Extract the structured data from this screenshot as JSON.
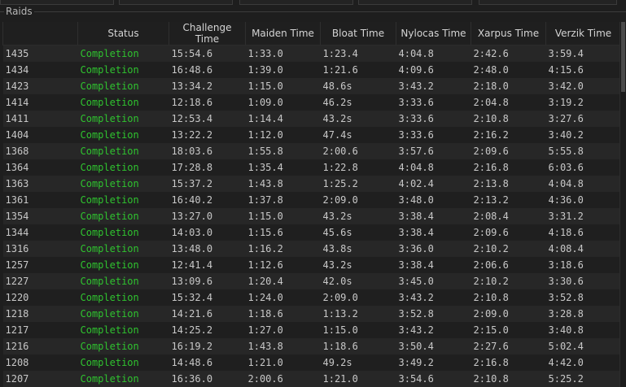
{
  "panel": {
    "title": "Raids"
  },
  "columns": [
    "",
    "Status",
    "Challenge Time",
    "Maiden Time",
    "Bloat Time",
    "Nylocas Time",
    "Xarpus Time",
    "Verzik Time"
  ],
  "rows": [
    [
      "1435",
      "Completion",
      "15:54.6",
      "1:33.0",
      "1:23.4",
      "4:04.8",
      "2:42.6",
      "3:59.4"
    ],
    [
      "1434",
      "Completion",
      "16:48.6",
      "1:39.0",
      "1:21.6",
      "4:09.6",
      "2:48.0",
      "4:15.6"
    ],
    [
      "1423",
      "Completion",
      "13:34.2",
      "1:15.0",
      "48.6s",
      "3:43.2",
      "2:18.0",
      "3:42.0"
    ],
    [
      "1414",
      "Completion",
      "12:18.6",
      "1:09.0",
      "46.2s",
      "3:33.6",
      "2:04.8",
      "3:19.2"
    ],
    [
      "1411",
      "Completion",
      "12:53.4",
      "1:14.4",
      "43.2s",
      "3:33.6",
      "2:10.8",
      "3:27.6"
    ],
    [
      "1404",
      "Completion",
      "13:22.2",
      "1:12.0",
      "47.4s",
      "3:33.6",
      "2:16.2",
      "3:40.2"
    ],
    [
      "1368",
      "Completion",
      "18:03.6",
      "1:55.8",
      "2:00.6",
      "3:57.6",
      "2:09.6",
      "5:55.8"
    ],
    [
      "1364",
      "Completion",
      "17:28.8",
      "1:35.4",
      "1:22.8",
      "4:04.8",
      "2:16.8",
      "6:03.6"
    ],
    [
      "1363",
      "Completion",
      "15:37.2",
      "1:43.8",
      "1:25.2",
      "4:02.4",
      "2:13.8",
      "4:04.8"
    ],
    [
      "1361",
      "Completion",
      "16:40.2",
      "1:37.8",
      "2:09.0",
      "3:48.0",
      "2:13.2",
      "4:36.0"
    ],
    [
      "1354",
      "Completion",
      "13:27.0",
      "1:15.0",
      "43.2s",
      "3:38.4",
      "2:08.4",
      "3:31.2"
    ],
    [
      "1344",
      "Completion",
      "14:03.0",
      "1:15.6",
      "45.6s",
      "3:38.4",
      "2:09.6",
      "4:18.6"
    ],
    [
      "1316",
      "Completion",
      "13:48.0",
      "1:16.2",
      "43.8s",
      "3:36.0",
      "2:10.2",
      "4:08.4"
    ],
    [
      "1257",
      "Completion",
      "12:41.4",
      "1:12.6",
      "43.2s",
      "3:38.4",
      "2:06.6",
      "3:18.6"
    ],
    [
      "1227",
      "Completion",
      "13:09.6",
      "1:20.4",
      "42.0s",
      "3:45.0",
      "2:10.2",
      "3:30.6"
    ],
    [
      "1220",
      "Completion",
      "15:32.4",
      "1:24.0",
      "2:09.0",
      "3:43.2",
      "2:10.8",
      "3:52.8"
    ],
    [
      "1218",
      "Completion",
      "14:21.6",
      "1:18.6",
      "1:13.2",
      "3:52.8",
      "2:09.0",
      "3:28.8"
    ],
    [
      "1217",
      "Completion",
      "14:25.2",
      "1:27.0",
      "1:15.0",
      "3:43.2",
      "2:15.0",
      "3:40.8"
    ],
    [
      "1216",
      "Completion",
      "16:19.2",
      "1:43.8",
      "1:18.6",
      "3:50.4",
      "2:27.6",
      "5:02.4"
    ],
    [
      "1208",
      "Completion",
      "14:48.6",
      "1:21.0",
      "49.2s",
      "3:49.2",
      "2:16.8",
      "4:42.0"
    ],
    [
      "1207",
      "Completion",
      "16:36.0",
      "2:00.6",
      "1:21.0",
      "3:54.6",
      "2:10.8",
      "5:25.2"
    ]
  ]
}
